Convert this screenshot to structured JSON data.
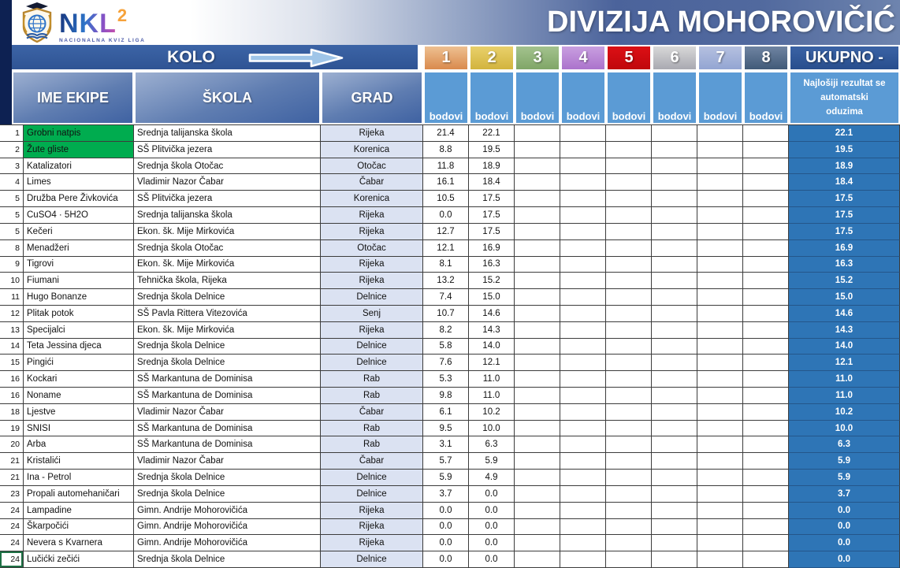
{
  "header": {
    "logo": {
      "text": "NKL",
      "sup": "2",
      "caption": "NACIONALNA KVIZ LIGA"
    },
    "title": "DIVIZIJA MOHOROVIČIĆ"
  },
  "kolo": {
    "label": "KOLO"
  },
  "rounds": [
    {
      "num": "1",
      "top": "#eec091",
      "bottom": "#d98a4d"
    },
    {
      "num": "2",
      "top": "#e9d06b",
      "bottom": "#d2b43e"
    },
    {
      "num": "3",
      "top": "#a3c28e",
      "bottom": "#80a667"
    },
    {
      "num": "4",
      "top": "#c99fe0",
      "bottom": "#ab73cc"
    },
    {
      "num": "5",
      "top": "#dc1015",
      "bottom": "#c0070c"
    },
    {
      "num": "6",
      "top": "#d8d8d8",
      "bottom": "#a9a9b1"
    },
    {
      "num": "7",
      "top": "#b5c0e0",
      "bottom": "#93a5d2"
    },
    {
      "num": "8",
      "top": "#6f84a2",
      "bottom": "#415a78"
    }
  ],
  "points_label": "bodovi",
  "ukupno": {
    "label": "UKUPNO -",
    "note": [
      "Najlošiji rezultat se",
      "automatski",
      "oduzima"
    ]
  },
  "columns": {
    "team": "IME EKIPE",
    "school": "ŠKOLA",
    "city": "GRAD"
  },
  "colors": {
    "highlight": "#00ac4f",
    "total_bg": "#2e75b6",
    "points_head_bg": "#5b9bd5",
    "city_bg": "#dbe2f2"
  },
  "rows": [
    {
      "rank": "1",
      "team": "Grobni natpis",
      "school": "Srednja talijanska škola",
      "city": "Rijeka",
      "scores": [
        "21.4",
        "22.1"
      ],
      "total": "22.1",
      "highlight": true,
      "selected": false
    },
    {
      "rank": "2",
      "team": "Žute gliste",
      "school": "SŠ Plitvička jezera",
      "city": "Korenica",
      "scores": [
        "8.8",
        "19.5"
      ],
      "total": "19.5",
      "highlight": true,
      "selected": false
    },
    {
      "rank": "3",
      "team": "Katalizatori",
      "school": "Srednja škola Otočac",
      "city": "Otočac",
      "scores": [
        "11.8",
        "18.9"
      ],
      "total": "18.9",
      "highlight": false,
      "selected": false
    },
    {
      "rank": "4",
      "team": "Limes",
      "school": "Vladimir Nazor Čabar",
      "city": "Čabar",
      "scores": [
        "16.1",
        "18.4"
      ],
      "total": "18.4",
      "highlight": false,
      "selected": false
    },
    {
      "rank": "5",
      "team": "Družba Pere Živkovića",
      "school": "SŠ Plitvička jezera",
      "city": "Korenica",
      "scores": [
        "10.5",
        "17.5"
      ],
      "total": "17.5",
      "highlight": false,
      "selected": false
    },
    {
      "rank": "5",
      "team": "CuSO4 · 5H2O",
      "school": "Srednja talijanska škola",
      "city": "Rijeka",
      "scores": [
        "0.0",
        "17.5"
      ],
      "total": "17.5",
      "highlight": false,
      "selected": false
    },
    {
      "rank": "5",
      "team": "Kečeri",
      "school": "Ekon. šk. Mije Mirkovića",
      "city": "Rijeka",
      "scores": [
        "12.7",
        "17.5"
      ],
      "total": "17.5",
      "highlight": false,
      "selected": false
    },
    {
      "rank": "8",
      "team": "Menadžeri",
      "school": "Srednja škola Otočac",
      "city": "Otočac",
      "scores": [
        "12.1",
        "16.9"
      ],
      "total": "16.9",
      "highlight": false,
      "selected": false
    },
    {
      "rank": "9",
      "team": "Tigrovi",
      "school": "Ekon. šk. Mije Mirkovića",
      "city": "Rijeka",
      "scores": [
        "8.1",
        "16.3"
      ],
      "total": "16.3",
      "highlight": false,
      "selected": false
    },
    {
      "rank": "10",
      "team": "Fiumani",
      "school": "Tehnička škola, Rijeka",
      "city": "Rijeka",
      "scores": [
        "13.2",
        "15.2"
      ],
      "total": "15.2",
      "highlight": false,
      "selected": false
    },
    {
      "rank": "11",
      "team": "Hugo Bonanze",
      "school": "Srednja škola Delnice",
      "city": "Delnice",
      "scores": [
        "7.4",
        "15.0"
      ],
      "total": "15.0",
      "highlight": false,
      "selected": false
    },
    {
      "rank": "12",
      "team": "Plitak potok",
      "school": "SŠ Pavla Rittera Vitezovića",
      "city": "Senj",
      "scores": [
        "10.7",
        "14.6"
      ],
      "total": "14.6",
      "highlight": false,
      "selected": false
    },
    {
      "rank": "13",
      "team": "Specijalci",
      "school": "Ekon. šk. Mije Mirkovića",
      "city": "Rijeka",
      "scores": [
        "8.2",
        "14.3"
      ],
      "total": "14.3",
      "highlight": false,
      "selected": false
    },
    {
      "rank": "14",
      "team": "Teta Jessina djeca",
      "school": "Srednja škola Delnice",
      "city": "Delnice",
      "scores": [
        "5.8",
        "14.0"
      ],
      "total": "14.0",
      "highlight": false,
      "selected": false
    },
    {
      "rank": "15",
      "team": "Pingići",
      "school": "Srednja škola Delnice",
      "city": "Delnice",
      "scores": [
        "7.6",
        "12.1"
      ],
      "total": "12.1",
      "highlight": false,
      "selected": false
    },
    {
      "rank": "16",
      "team": "Kockari",
      "school": "SŠ Markantuna de Dominisa",
      "city": "Rab",
      "scores": [
        "5.3",
        "11.0"
      ],
      "total": "11.0",
      "highlight": false,
      "selected": false
    },
    {
      "rank": "16",
      "team": "Noname",
      "school": "SŠ Markantuna de Dominisa",
      "city": "Rab",
      "scores": [
        "9.8",
        "11.0"
      ],
      "total": "11.0",
      "highlight": false,
      "selected": false
    },
    {
      "rank": "18",
      "team": "Ljestve",
      "school": "Vladimir Nazor Čabar",
      "city": "Čabar",
      "scores": [
        "6.1",
        "10.2"
      ],
      "total": "10.2",
      "highlight": false,
      "selected": false
    },
    {
      "rank": "19",
      "team": "SNISI",
      "school": "SŠ Markantuna de Dominisa",
      "city": "Rab",
      "scores": [
        "9.5",
        "10.0"
      ],
      "total": "10.0",
      "highlight": false,
      "selected": false
    },
    {
      "rank": "20",
      "team": "Arba",
      "school": "SŠ Markantuna de Dominisa",
      "city": "Rab",
      "scores": [
        "3.1",
        "6.3"
      ],
      "total": "6.3",
      "highlight": false,
      "selected": false
    },
    {
      "rank": "21",
      "team": "Kristalići",
      "school": "Vladimir Nazor Čabar",
      "city": "Čabar",
      "scores": [
        "5.7",
        "5.9"
      ],
      "total": "5.9",
      "highlight": false,
      "selected": false
    },
    {
      "rank": "21",
      "team": "Ina - Petrol",
      "school": "Srednja škola Delnice",
      "city": "Delnice",
      "scores": [
        "5.9",
        "4.9"
      ],
      "total": "5.9",
      "highlight": false,
      "selected": false
    },
    {
      "rank": "23",
      "team": "Propali automehaničari",
      "school": "Srednja škola Delnice",
      "city": "Delnice",
      "scores": [
        "3.7",
        "0.0"
      ],
      "total": "3.7",
      "highlight": false,
      "selected": false
    },
    {
      "rank": "24",
      "team": "Lampadine",
      "school": "Gimn. Andrije Mohorovičića",
      "city": "Rijeka",
      "scores": [
        "0.0",
        "0.0"
      ],
      "total": "0.0",
      "highlight": false,
      "selected": false
    },
    {
      "rank": "24",
      "team": "Škarpočići",
      "school": "Gimn. Andrije Mohorovičića",
      "city": "Rijeka",
      "scores": [
        "0.0",
        "0.0"
      ],
      "total": "0.0",
      "highlight": false,
      "selected": false
    },
    {
      "rank": "24",
      "team": "Nevera s Kvarnera",
      "school": "Gimn. Andrije Mohorovičića",
      "city": "Rijeka",
      "scores": [
        "0.0",
        "0.0"
      ],
      "total": "0.0",
      "highlight": false,
      "selected": false
    },
    {
      "rank": "24",
      "team": "Lučićki zečići",
      "school": "Srednja škola Delnice",
      "city": "Delnice",
      "scores": [
        "0.0",
        "0.0"
      ],
      "total": "0.0",
      "highlight": false,
      "selected": true
    }
  ]
}
